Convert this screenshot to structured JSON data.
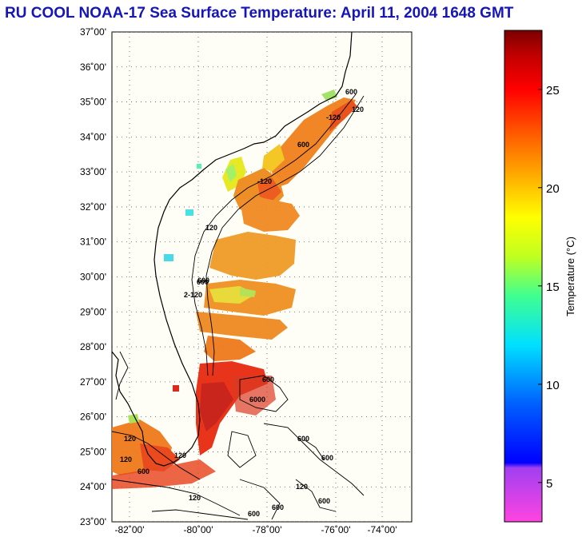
{
  "title": "RU COOL  NOAA-17  Sea Surface Temperature:  April 11, 2004 1648 GMT",
  "map": {
    "lat_labels": [
      "37˚00'",
      "36˚00'",
      "35˚00'",
      "34˚00'",
      "33˚00'",
      "32˚00'",
      "31˚00'",
      "30˚00'",
      "29˚00'",
      "28˚00'",
      "27˚00'",
      "26˚00'",
      "25˚00'",
      "24˚00'",
      "23˚00'"
    ],
    "lon_labels": [
      "-82˚00'",
      "-80˚00'",
      "-78˚00'",
      "-76˚00'",
      "-74˚00'"
    ],
    "contour_labels": [
      "-120",
      "600",
      "120",
      "600",
      "-120",
      "120",
      "600",
      "2-120",
      "600",
      "600",
      "6000",
      "600",
      "600",
      "120",
      "120",
      "120",
      "600",
      "600",
      "600",
      "120",
      "600",
      "120"
    ]
  },
  "colorbar": {
    "label": "Temperature (°C)",
    "tick_values": [
      "25",
      "20",
      "15",
      "10",
      "5"
    ],
    "min": 3,
    "max": 28
  },
  "colors": {
    "title": "#1515b8",
    "land_background": "#fffef5"
  }
}
